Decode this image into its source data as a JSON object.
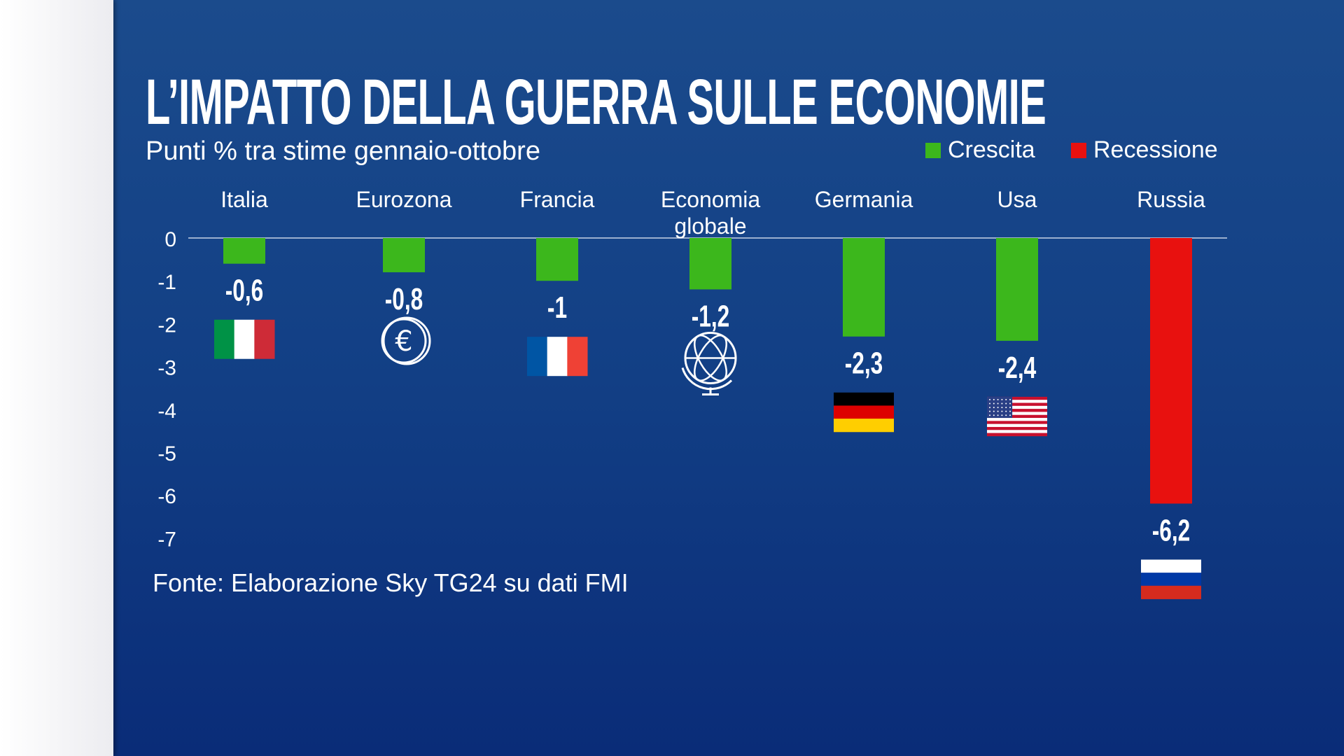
{
  "chart_data": {
    "type": "bar",
    "title": "L’IMPATTO DELLA GUERRA SULLE ECONOMIE",
    "subtitle": "Punti % tra stime gennaio-ottobre",
    "categories": [
      "Italia",
      "Eurozona",
      "Francia",
      "Economia globale",
      "Germania",
      "Usa",
      "Russia"
    ],
    "category_lines": [
      [
        "Italia"
      ],
      [
        "Eurozona"
      ],
      [
        "Francia"
      ],
      [
        "Economia",
        "globale"
      ],
      [
        "Germania"
      ],
      [
        "Usa"
      ],
      [
        "Russia"
      ]
    ],
    "values": [
      -0.6,
      -0.8,
      -1,
      -1.2,
      -2.3,
      -2.4,
      -6.2
    ],
    "value_labels": [
      "-0,6",
      "-0,8",
      "-1",
      "-1,2",
      "-2,3",
      "-2,4",
      "-6,2"
    ],
    "bar_kind": [
      "growth",
      "growth",
      "growth",
      "growth",
      "growth",
      "growth",
      "recession"
    ],
    "icons": [
      "flag-italy",
      "euro-coin",
      "flag-france",
      "globe",
      "flag-germany",
      "flag-usa",
      "flag-russia"
    ],
    "ylim": [
      -7,
      0
    ],
    "yticks": [
      "0",
      "-1",
      "-2",
      "-3",
      "-4",
      "-5",
      "-6",
      "-7"
    ],
    "ytick_values": [
      0,
      -1,
      -2,
      -3,
      -4,
      -5,
      -6,
      -7
    ],
    "legend": [
      {
        "label": "Crescita",
        "color": "#3cb71c"
      },
      {
        "label": "Recessione",
        "color": "#e8110f"
      }
    ],
    "legend_position": "top-right",
    "grid": false,
    "source": "Fonte: Elaborazione Sky TG24 su dati FMI"
  }
}
